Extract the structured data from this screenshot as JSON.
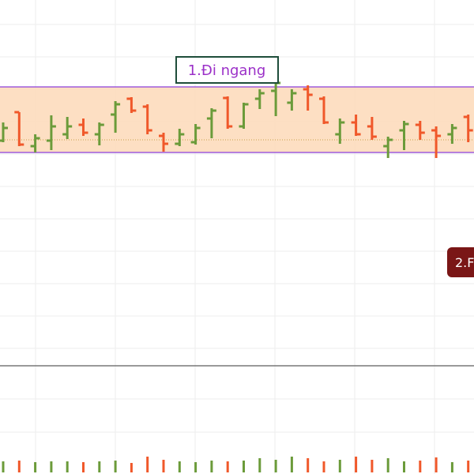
{
  "chart_data": {
    "type": "ohlc",
    "open": [
      285,
      321,
      278,
      285,
      293,
      305,
      293,
      318,
      338,
      328,
      291,
      281,
      283,
      313,
      339,
      303,
      338,
      348,
      333,
      350,
      338,
      293,
      308,
      303,
      278,
      298,
      305,
      298,
      293,
      315
    ],
    "high": [
      308,
      321,
      293,
      317,
      315,
      313,
      308,
      335,
      340,
      331,
      295,
      300,
      306,
      326,
      341,
      333,
      350,
      365,
      350,
      355,
      341,
      313,
      318,
      315,
      290,
      310,
      310,
      303,
      306,
      318
    ],
    "low": [
      283,
      278,
      270,
      273,
      287,
      291,
      279,
      295,
      320,
      293,
      271,
      278,
      280,
      288,
      300,
      300,
      325,
      316,
      323,
      323,
      306,
      281,
      291,
      286,
      263,
      273,
      286,
      263,
      281,
      283
    ],
    "close": [
      301,
      280,
      288,
      303,
      303,
      295,
      305,
      331,
      323,
      298,
      281,
      293,
      301,
      323,
      303,
      331,
      345,
      358,
      345,
      343,
      308,
      308,
      293,
      290,
      286,
      306,
      295,
      291,
      301,
      298
    ],
    "volume": [
      14,
      15,
      13,
      14,
      14,
      13,
      14,
      15,
      12,
      20,
      16,
      14,
      13,
      15,
      14,
      15,
      18,
      16,
      20,
      18,
      14,
      16,
      20,
      16,
      18,
      14,
      15,
      19,
      13,
      15
    ],
    "up_color": "#6b9b3a",
    "down_color": "#f0582a",
    "ylim": [
      0,
      463
    ],
    "volume_lim": [
      0,
      128
    ],
    "range_box": {
      "top": 353,
      "bottom": 270,
      "mid": 286,
      "fill": "#fdd9b8",
      "border": "#8b3fd9"
    },
    "annotations": [
      {
        "text": "1.Đi ngang"
      },
      {
        "text": "2.F"
      }
    ]
  }
}
